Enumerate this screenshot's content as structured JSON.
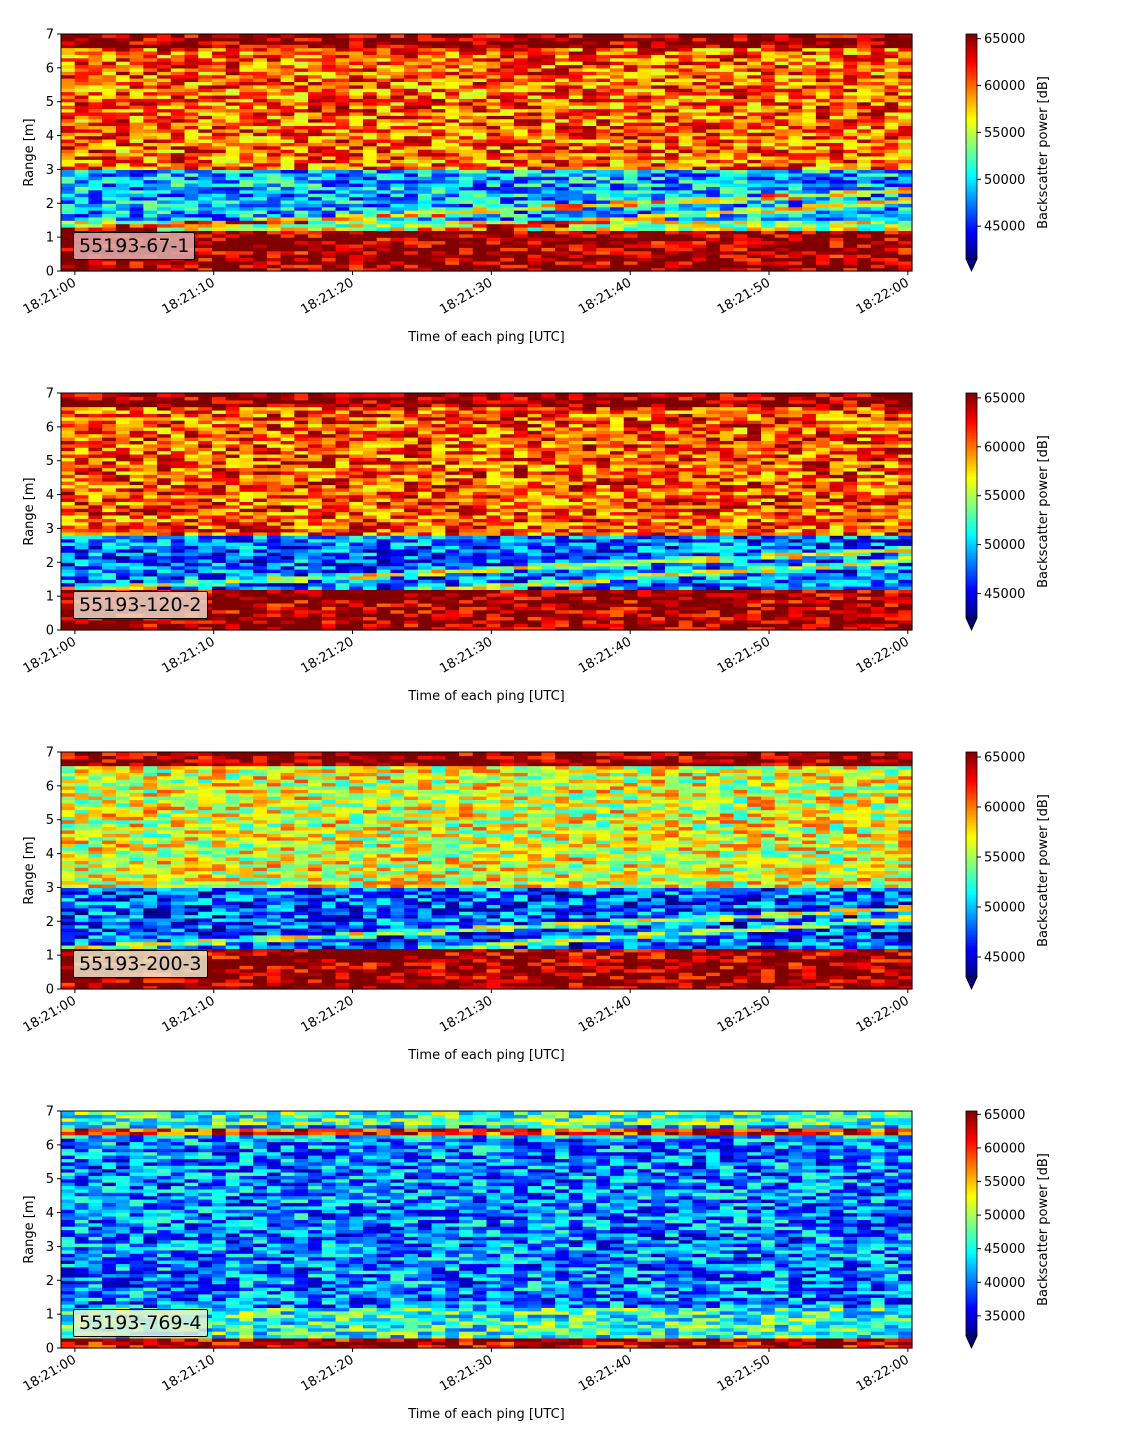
{
  "colors": {
    "band_far": "#7f0000",
    "band_near": "#7f0000"
  },
  "chart_data": [
    {
      "type": "heatmap",
      "label": "55193-67-1",
      "xlabel": "Time of each ping [UTC]",
      "ylabel": "Range [m]",
      "xticks": [
        "18:21:00",
        "18:21:10",
        "18:21:20",
        "18:21:30",
        "18:21:40",
        "18:21:50",
        "18:22:00"
      ],
      "yticks": [
        "0",
        "1",
        "2",
        "3",
        "4",
        "5",
        "6",
        "7"
      ],
      "ylim": [
        0,
        7
      ],
      "xlim_seconds": [
        -1,
        60.3
      ],
      "colorbar": {
        "label": "Backscatter power [dB]",
        "min": 41500,
        "max": 65500,
        "ticks": [
          "45000",
          "50000",
          "55000",
          "60000",
          "65000"
        ],
        "tick_values": [
          45000,
          50000,
          55000,
          60000,
          65000
        ],
        "extend": "min"
      },
      "colormap": "jet",
      "pattern": {
        "mid_band": [
          1.5,
          3.0
        ],
        "upper_level": 0.78,
        "mid_level": 0.3,
        "low_level": 0.55
      }
    },
    {
      "type": "heatmap",
      "label": "55193-120-2",
      "xlabel": "Time of each ping [UTC]",
      "ylabel": "Range [m]",
      "xticks": [
        "18:21:00",
        "18:21:10",
        "18:21:20",
        "18:21:30",
        "18:21:40",
        "18:21:50",
        "18:22:00"
      ],
      "yticks": [
        "0",
        "1",
        "2",
        "3",
        "4",
        "5",
        "6",
        "7"
      ],
      "ylim": [
        0,
        7
      ],
      "xlim_seconds": [
        -1,
        60.3
      ],
      "colorbar": {
        "label": "Backscatter power [dB]",
        "min": 42500,
        "max": 65500,
        "ticks": [
          "45000",
          "50000",
          "55000",
          "60000",
          "65000"
        ],
        "tick_values": [
          45000,
          50000,
          55000,
          60000,
          65000
        ],
        "extend": "min"
      },
      "colormap": "jet",
      "pattern": {
        "mid_band": [
          1.2,
          2.8
        ],
        "upper_level": 0.8,
        "mid_level": 0.22,
        "low_level": 0.6
      }
    },
    {
      "type": "heatmap",
      "label": "55193-200-3",
      "xlabel": "Time of each ping [UTC]",
      "ylabel": "Range [m]",
      "xticks": [
        "18:21:00",
        "18:21:10",
        "18:21:20",
        "18:21:30",
        "18:21:40",
        "18:21:50",
        "18:22:00"
      ],
      "yticks": [
        "0",
        "1",
        "2",
        "3",
        "4",
        "5",
        "6",
        "7"
      ],
      "ylim": [
        0,
        7
      ],
      "xlim_seconds": [
        -1,
        60.3
      ],
      "colorbar": {
        "label": "Backscatter power [dB]",
        "min": 43000,
        "max": 65500,
        "ticks": [
          "45000",
          "50000",
          "55000",
          "60000",
          "65000"
        ],
        "tick_values": [
          45000,
          50000,
          55000,
          60000,
          65000
        ],
        "extend": "min"
      },
      "colormap": "jet",
      "pattern": {
        "mid_band": [
          1.0,
          3.0
        ],
        "upper_level": 0.6,
        "mid_level": 0.2,
        "low_level": 0.5
      }
    },
    {
      "type": "heatmap",
      "label": "55193-769-4",
      "xlabel": "Time of each ping [UTC]",
      "ylabel": "Range [m]",
      "xticks": [
        "18:21:00",
        "18:21:10",
        "18:21:20",
        "18:21:30",
        "18:21:40",
        "18:21:50",
        "18:22:00"
      ],
      "yticks": [
        "0",
        "1",
        "2",
        "3",
        "4",
        "5",
        "6",
        "7"
      ],
      "ylim": [
        0,
        7
      ],
      "xlim_seconds": [
        -1,
        60.3
      ],
      "colorbar": {
        "label": "Backscatter power [dB]",
        "min": 32000,
        "max": 65500,
        "ticks": [
          "35000",
          "40000",
          "45000",
          "50000",
          "55000",
          "60000",
          "65000"
        ],
        "tick_values": [
          35000,
          40000,
          45000,
          50000,
          55000,
          60000,
          65000
        ],
        "extend": "min"
      },
      "colormap": "jet",
      "pattern": {
        "mid_band": [
          0.5,
          6.2
        ],
        "upper_level": 0.3,
        "mid_level": 0.25,
        "low_level": 0.42
      }
    }
  ]
}
